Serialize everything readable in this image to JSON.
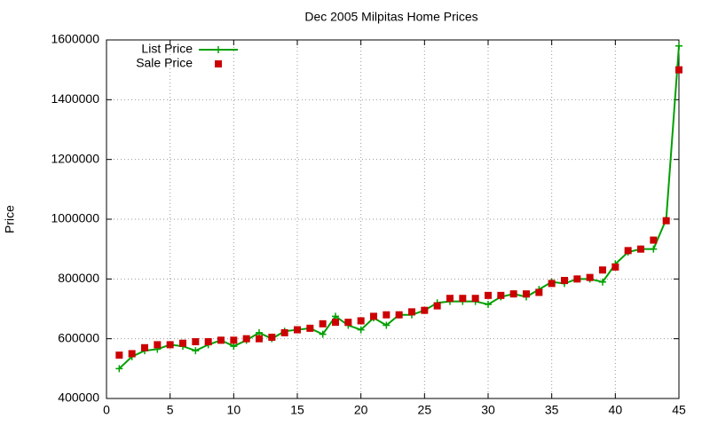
{
  "chart_data": {
    "type": "line",
    "title": "Dec 2005 Milpitas Home Prices",
    "y_label": "Price",
    "x": [
      1,
      2,
      3,
      4,
      5,
      6,
      7,
      8,
      9,
      10,
      11,
      12,
      13,
      14,
      15,
      16,
      17,
      18,
      19,
      20,
      21,
      22,
      23,
      24,
      25,
      26,
      27,
      28,
      29,
      30,
      31,
      32,
      33,
      34,
      35,
      36,
      37,
      38,
      39,
      40,
      41,
      42,
      43,
      44,
      45
    ],
    "series": [
      {
        "name": "List Price",
        "color": "#00a000",
        "marker": "plus",
        "line": true,
        "values": [
          500000,
          540000,
          560000,
          565000,
          580000,
          575000,
          560000,
          580000,
          595000,
          575000,
          595000,
          620000,
          600000,
          625000,
          630000,
          635000,
          615000,
          675000,
          645000,
          630000,
          670000,
          645000,
          680000,
          680000,
          695000,
          720000,
          725000,
          725000,
          725000,
          715000,
          740000,
          750000,
          740000,
          765000,
          790000,
          785000,
          800000,
          800000,
          790000,
          850000,
          890000,
          900000,
          900000,
          1000000,
          1580000
        ]
      },
      {
        "name": "Sale Price",
        "color": "#cc0000",
        "marker": "square",
        "line": false,
        "values": [
          545000,
          550000,
          570000,
          580000,
          580000,
          585000,
          590000,
          590000,
          595000,
          595000,
          600000,
          600000,
          605000,
          620000,
          630000,
          635000,
          650000,
          655000,
          655000,
          660000,
          675000,
          680000,
          680000,
          690000,
          695000,
          710000,
          735000,
          735000,
          735000,
          745000,
          745000,
          750000,
          750000,
          755000,
          785000,
          795000,
          800000,
          805000,
          830000,
          840000,
          895000,
          900000,
          930000,
          995000,
          1500000
        ]
      }
    ],
    "xlim": [
      0,
      45
    ],
    "xticks": [
      0,
      5,
      10,
      15,
      20,
      25,
      30,
      35,
      40,
      45
    ],
    "ylim": [
      400000,
      1600000
    ],
    "yticks": [
      400000,
      600000,
      800000,
      1000000,
      1200000,
      1400000,
      1600000
    ],
    "grid": true,
    "legend": "top-left"
  }
}
